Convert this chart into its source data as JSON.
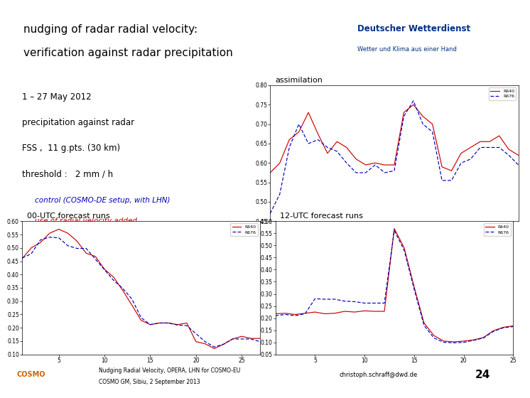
{
  "title_line1": "nudging of radar radial velocity:",
  "title_line2": "verification against radar precipitation",
  "subtitle_line1": "1 – 27 May 2012",
  "subtitle_line2": "precipitation against radar",
  "subtitle_line3": "FSS ,  11 g.pts. (30 km)",
  "subtitle_line4": "threshold :   2 mm / h",
  "legend_label1": "R640",
  "legend_label2": "R676",
  "control_text": "control (COSMO-DE setup, with LHN)",
  "radial_text": "use of radial velocity added",
  "footer_left": "Nudging Radial Velocity, OPERA, LHN for COSMO-EU\nCOSMO GM, Sibiu, 2 September 2013",
  "footer_email": "christoph.schraff@dwd.de",
  "footer_num": "24",
  "color_red": "#cc0000",
  "color_blue": "#0000bb",
  "color_header": "#dce6f0",
  "color_sep": "#1a3a6e",
  "color_dwd_blue": "#003082",
  "assimilation_x": [
    1,
    2,
    3,
    4,
    5,
    6,
    7,
    8,
    9,
    10,
    11,
    12,
    13,
    14,
    15,
    16,
    17,
    18,
    19,
    20,
    21,
    22,
    23,
    24,
    25,
    26,
    27
  ],
  "assimilation_red": [
    0.575,
    0.6,
    0.66,
    0.68,
    0.73,
    0.675,
    0.625,
    0.655,
    0.64,
    0.61,
    0.595,
    0.6,
    0.595,
    0.595,
    0.73,
    0.75,
    0.72,
    0.7,
    0.59,
    0.58,
    0.625,
    0.64,
    0.655,
    0.655,
    0.67,
    0.635,
    0.62
  ],
  "assimilation_blue": [
    0.47,
    0.52,
    0.64,
    0.7,
    0.65,
    0.66,
    0.64,
    0.63,
    0.6,
    0.575,
    0.575,
    0.595,
    0.575,
    0.58,
    0.72,
    0.76,
    0.7,
    0.68,
    0.555,
    0.555,
    0.6,
    0.61,
    0.64,
    0.64,
    0.64,
    0.62,
    0.595
  ],
  "assimilation_ylim": [
    0.45,
    0.8
  ],
  "assimilation_yticks": [
    0.45,
    0.5,
    0.55,
    0.6,
    0.65,
    0.7,
    0.75,
    0.8
  ],
  "fc00_x": [
    1,
    2,
    3,
    4,
    5,
    6,
    7,
    8,
    9,
    10,
    11,
    12,
    13,
    14,
    15,
    16,
    17,
    18,
    19,
    20,
    21,
    22,
    23,
    24,
    25,
    26,
    27
  ],
  "fc00_red": [
    0.46,
    0.5,
    0.52,
    0.555,
    0.57,
    0.555,
    0.525,
    0.48,
    0.468,
    0.42,
    0.39,
    0.34,
    0.285,
    0.228,
    0.212,
    0.218,
    0.218,
    0.212,
    0.218,
    0.148,
    0.14,
    0.122,
    0.138,
    0.158,
    0.168,
    0.16,
    0.16
  ],
  "fc00_blue": [
    0.462,
    0.478,
    0.53,
    0.54,
    0.538,
    0.508,
    0.498,
    0.498,
    0.458,
    0.418,
    0.378,
    0.348,
    0.308,
    0.238,
    0.212,
    0.218,
    0.218,
    0.21,
    0.208,
    0.178,
    0.148,
    0.128,
    0.138,
    0.158,
    0.158,
    0.158,
    0.148
  ],
  "fc00_ylim": [
    0.1,
    0.6
  ],
  "fc00_yticks": [
    0.1,
    0.15,
    0.2,
    0.25,
    0.3,
    0.35,
    0.4,
    0.45,
    0.5,
    0.55,
    0.6
  ],
  "fc12_x": [
    1,
    2,
    3,
    4,
    5,
    6,
    7,
    8,
    9,
    10,
    11,
    12,
    13,
    14,
    15,
    16,
    17,
    18,
    19,
    20,
    21,
    22,
    23,
    24,
    25
  ],
  "fc12_red": [
    0.218,
    0.22,
    0.215,
    0.22,
    0.225,
    0.218,
    0.22,
    0.228,
    0.225,
    0.23,
    0.228,
    0.228,
    0.57,
    0.49,
    0.33,
    0.18,
    0.128,
    0.105,
    0.102,
    0.105,
    0.11,
    0.12,
    0.148,
    0.162,
    0.168
  ],
  "fc12_blue": [
    0.21,
    0.215,
    0.21,
    0.218,
    0.28,
    0.278,
    0.278,
    0.27,
    0.268,
    0.262,
    0.262,
    0.262,
    0.562,
    0.48,
    0.32,
    0.17,
    0.118,
    0.1,
    0.098,
    0.1,
    0.108,
    0.118,
    0.145,
    0.16,
    0.165
  ],
  "fc12_ylim": [
    0.05,
    0.6
  ],
  "fc12_yticks": [
    0.05,
    0.1,
    0.15,
    0.2,
    0.25,
    0.3,
    0.35,
    0.4,
    0.45,
    0.5,
    0.55,
    0.6
  ],
  "bg_white": "#ffffff"
}
